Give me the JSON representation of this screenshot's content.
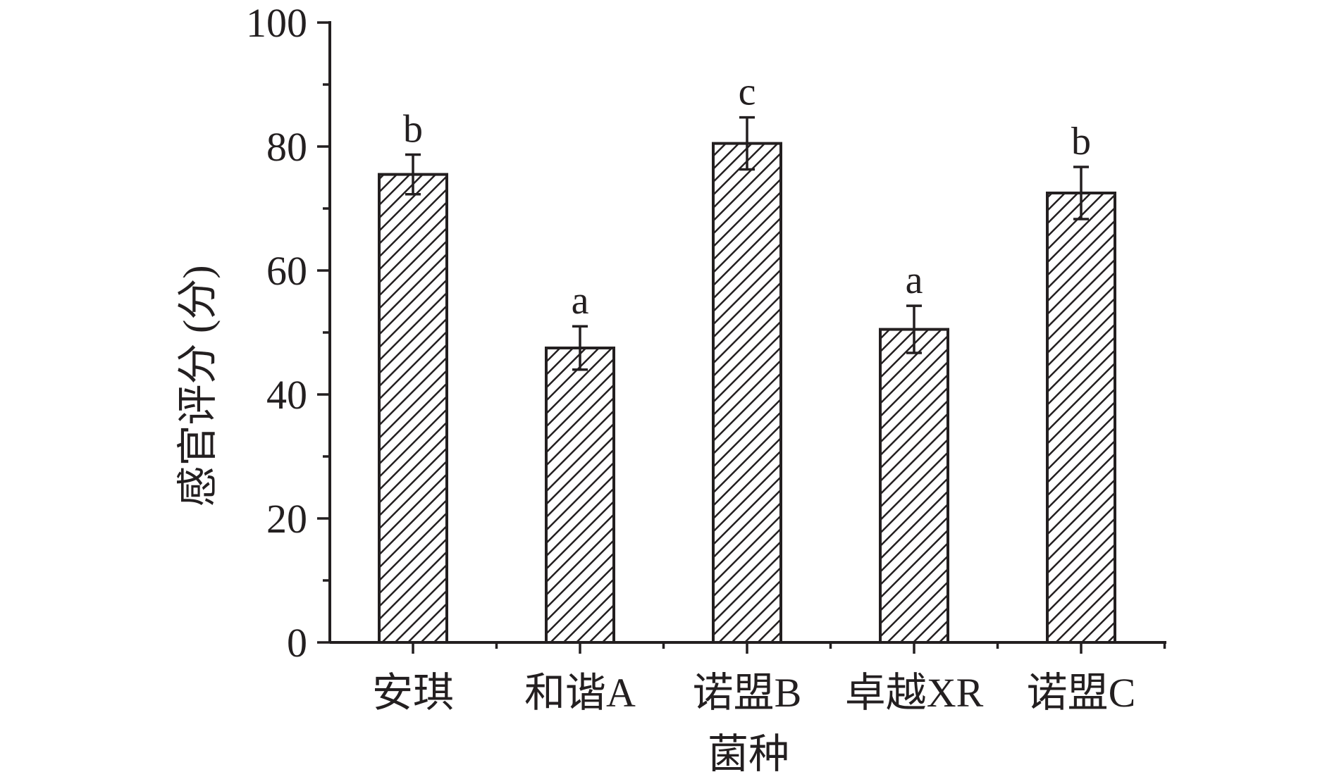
{
  "chart_data": {
    "type": "bar",
    "title": "",
    "xlabel": "菌种",
    "ylabel": "感官评分 (分)",
    "ylim": [
      0,
      100
    ],
    "yticks": [
      "0",
      "20",
      "40",
      "60",
      "80",
      "100"
    ],
    "categories": [
      "安琪",
      "和谐A",
      "诺盟B",
      "卓越XR",
      "诺盟C"
    ],
    "values": [
      75.5,
      47.5,
      80.5,
      50.5,
      72.5
    ],
    "errors": [
      3.2,
      3.5,
      4.2,
      3.8,
      4.2
    ],
    "significance": [
      "b",
      "a",
      "c",
      "a",
      "b"
    ],
    "bar_fill": "hatched",
    "colors": {
      "ink": "#231f20",
      "background": "#ffffff"
    },
    "grid": false,
    "legend": "none"
  }
}
